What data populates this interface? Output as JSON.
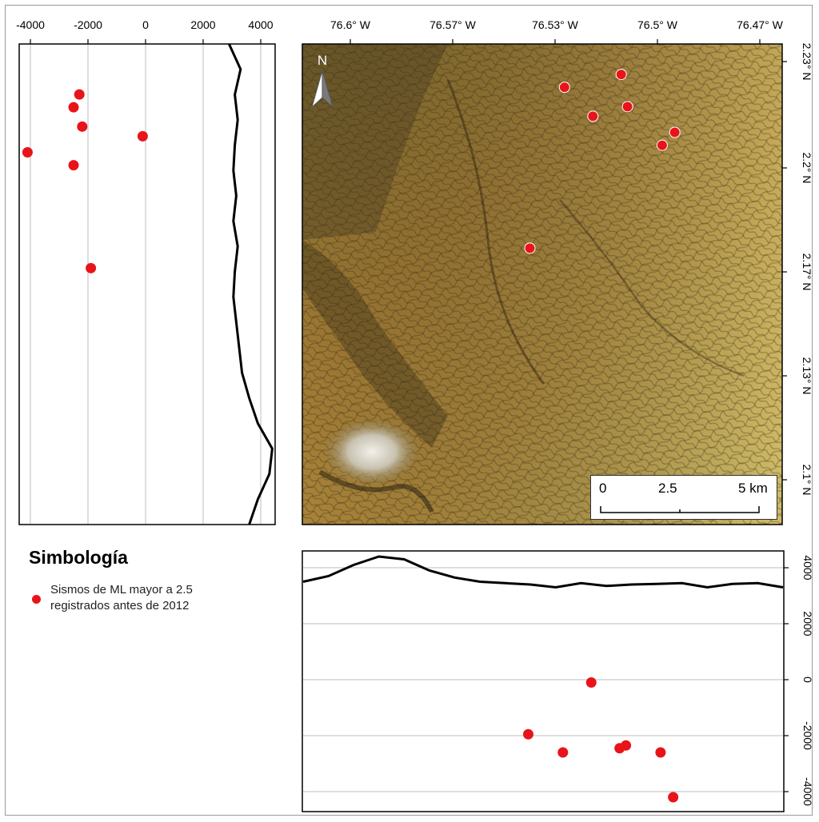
{
  "legend": {
    "title": "Simbología",
    "item_line1": "Sismos de ML mayor a 2.5",
    "item_line2": "registrados antes de 2012",
    "dot_color": "#e8141a"
  },
  "map": {
    "north_label": "N",
    "lon_ticks": [
      "76.6° W",
      "76.57° W",
      "76.53° W",
      "76.5° W",
      "76.47° W"
    ],
    "lat_ticks": [
      "2.23° N",
      "2.2° N",
      "2.17° N",
      "2.13° N",
      "2.1° N"
    ],
    "scale_labels": [
      "0",
      "2.5",
      "5 km"
    ],
    "events": [
      {
        "lon": -76.514,
        "lat": 2.226
      },
      {
        "lon": -76.532,
        "lat": 2.222
      },
      {
        "lon": -76.512,
        "lat": 2.216
      },
      {
        "lon": -76.523,
        "lat": 2.213
      },
      {
        "lon": -76.497,
        "lat": 2.208
      },
      {
        "lon": -76.501,
        "lat": 2.204
      },
      {
        "lon": -76.543,
        "lat": 2.172
      }
    ],
    "colors": {
      "terrain_low": "#a07a30",
      "terrain_high": "#c9b460",
      "shadow": "#3d3520"
    }
  },
  "left_profile": {
    "x_ticks": [
      "-4000",
      "-2000",
      "0",
      "2000",
      "4000"
    ],
    "x_values": [
      -4000,
      -2000,
      0,
      2000,
      4000
    ]
  },
  "bottom_profile": {
    "y_ticks": [
      "4000",
      "2000",
      "0",
      "-2000",
      "-4000"
    ],
    "y_values": [
      4000,
      2000,
      0,
      -2000,
      -4000
    ]
  },
  "chart_data": [
    {
      "type": "scatter",
      "title": "",
      "xlabel": "",
      "ylabel": "",
      "xlim": [
        -4300,
        4500
      ],
      "x_ticks": [
        -4000,
        -2000,
        0,
        2000,
        4000
      ],
      "grid": true,
      "series": [
        {
          "x": [
            -2300,
            -2500,
            -2200,
            -100,
            -4100,
            -2500,
            -1900
          ],
          "y_lat": [
            2.226,
            2.222,
            2.216,
            2.213,
            2.208,
            2.204,
            2.172
          ]
        }
      ],
      "profile_x": [
        2900,
        3300,
        3100,
        3200,
        3100,
        3050,
        3150,
        3050,
        3200,
        3100,
        3050,
        3150,
        3250,
        3350,
        3600,
        3900,
        4400,
        4300,
        3900,
        3600
      ]
    },
    {
      "type": "scatter",
      "title": "",
      "xlabel": "",
      "ylabel": "",
      "ylim": [
        -4300,
        4500
      ],
      "y_ticks": [
        4000,
        2000,
        0,
        -2000,
        -4000
      ],
      "grid": true,
      "series": [
        {
          "x_lon": [
            -76.543,
            -76.532,
            -76.523,
            -76.514,
            -76.512,
            -76.501,
            -76.497
          ],
          "y": [
            -1950,
            -2600,
            -100,
            -2450,
            -2350,
            -2600,
            -4200
          ]
        }
      ],
      "profile_y": [
        3500,
        3700,
        4100,
        4400,
        4300,
        3900,
        3650,
        3500,
        3450,
        3400,
        3300,
        3450,
        3350,
        3400,
        3420,
        3450,
        3300,
        3420,
        3450,
        3300
      ]
    }
  ]
}
